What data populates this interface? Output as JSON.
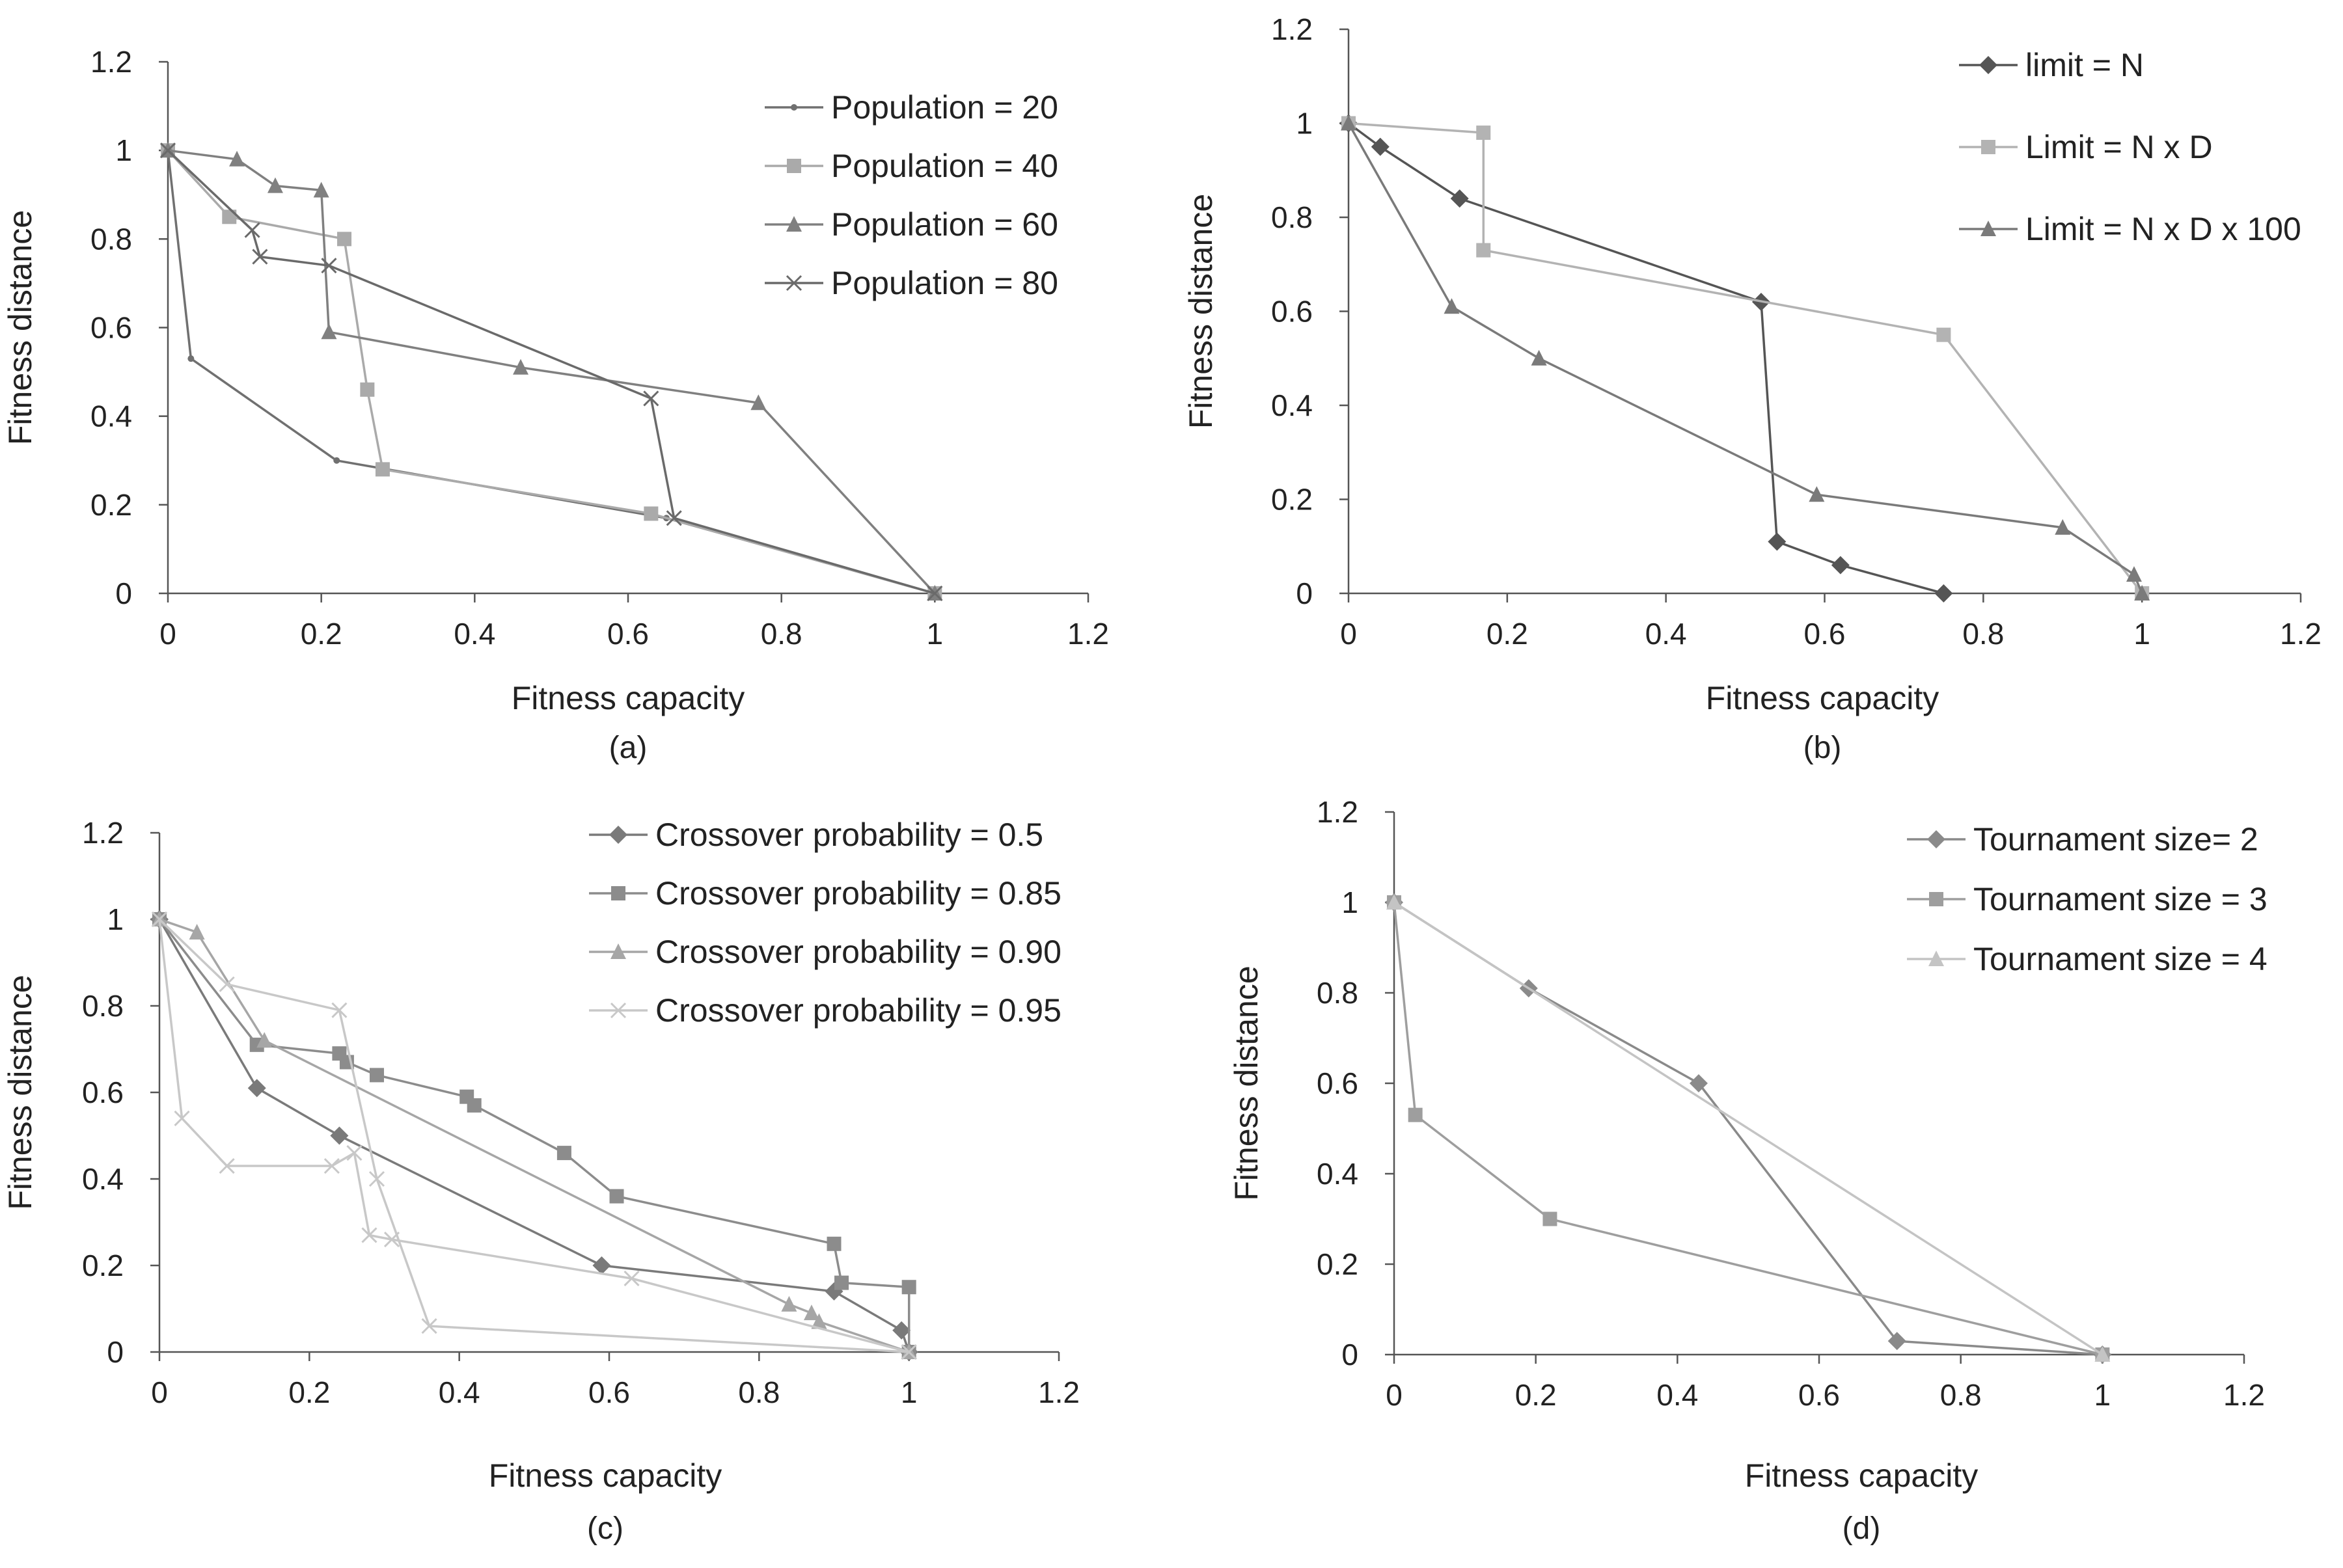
{
  "chart_data": [
    {
      "type": "line",
      "panel_label": "(a)",
      "xlabel": "Fitness capacity",
      "ylabel": "Fitness distance",
      "xlim": [
        0,
        1.2
      ],
      "ylim": [
        0,
        1.2
      ],
      "x_ticks": [
        "0",
        "0.2",
        "0.4",
        "0.6",
        "0.8",
        "1",
        "1.2"
      ],
      "y_ticks": [
        "0",
        "0.2",
        "0.4",
        "0.6",
        "0.8",
        "1",
        "1.2"
      ],
      "legend_position": "top-right",
      "series": [
        {
          "name": "Population = 20",
          "marker": "dot",
          "color": "#707070",
          "points": [
            [
              0,
              1
            ],
            [
              0.03,
              0.53
            ],
            [
              0.22,
              0.3
            ],
            [
              0.65,
              0.17
            ],
            [
              1,
              0
            ]
          ]
        },
        {
          "name": "Population = 40",
          "marker": "square",
          "color": "#aaaaaa",
          "points": [
            [
              0,
              1
            ],
            [
              0.08,
              0.85
            ],
            [
              0.23,
              0.8
            ],
            [
              0.26,
              0.46
            ],
            [
              0.28,
              0.28
            ],
            [
              0.63,
              0.18
            ],
            [
              1,
              0
            ]
          ]
        },
        {
          "name": "Population = 60",
          "marker": "triangle",
          "color": "#808080",
          "points": [
            [
              0,
              1
            ],
            [
              0.09,
              0.98
            ],
            [
              0.14,
              0.92
            ],
            [
              0.2,
              0.91
            ],
            [
              0.21,
              0.59
            ],
            [
              0.46,
              0.51
            ],
            [
              0.77,
              0.43
            ],
            [
              1,
              0
            ]
          ]
        },
        {
          "name": "Population = 80",
          "marker": "x",
          "color": "#6a6a6a",
          "points": [
            [
              0,
              1
            ],
            [
              0.11,
              0.82
            ],
            [
              0.12,
              0.76
            ],
            [
              0.21,
              0.74
            ],
            [
              0.63,
              0.44
            ],
            [
              0.66,
              0.17
            ],
            [
              1,
              0
            ]
          ]
        }
      ]
    },
    {
      "type": "line",
      "panel_label": "(b)",
      "xlabel": "Fitness capacity",
      "ylabel": "Fitness distance",
      "xlim": [
        0,
        1.2
      ],
      "ylim": [
        0,
        1.2
      ],
      "x_ticks": [
        "0",
        "0.2",
        "0.4",
        "0.6",
        "0.8",
        "1",
        "1.2"
      ],
      "y_ticks": [
        "0",
        "0.2",
        "0.4",
        "0.6",
        "0.8",
        "1",
        "1.2"
      ],
      "legend_position": "top-right",
      "series": [
        {
          "name": "limit = N",
          "marker": "diamond",
          "color": "#555555",
          "points": [
            [
              0,
              1
            ],
            [
              0.04,
              0.95
            ],
            [
              0.14,
              0.84
            ],
            [
              0.52,
              0.62
            ],
            [
              0.54,
              0.11
            ],
            [
              0.62,
              0.06
            ],
            [
              0.75,
              0
            ]
          ]
        },
        {
          "name": "Limit = N x D",
          "marker": "square",
          "color": "#b3b3b3",
          "points": [
            [
              0,
              1
            ],
            [
              0.17,
              0.98
            ],
            [
              0.17,
              0.73
            ],
            [
              0.75,
              0.55
            ],
            [
              1,
              0
            ]
          ]
        },
        {
          "name": "Limit = N x D x 100",
          "marker": "triangle",
          "color": "#7a7a7a",
          "points": [
            [
              0,
              1
            ],
            [
              0.13,
              0.61
            ],
            [
              0.24,
              0.5
            ],
            [
              0.59,
              0.21
            ],
            [
              0.9,
              0.14
            ],
            [
              0.99,
              0.04
            ],
            [
              1,
              0
            ]
          ]
        }
      ]
    },
    {
      "type": "line",
      "panel_label": "(c)",
      "xlabel": "Fitness capacity",
      "ylabel": "Fitness distance",
      "xlim": [
        0,
        1.2
      ],
      "ylim": [
        0,
        1.2
      ],
      "x_ticks": [
        "0",
        "0.2",
        "0.4",
        "0.6",
        "0.8",
        "1",
        "1.2"
      ],
      "y_ticks": [
        "0",
        "0.2",
        "0.4",
        "0.6",
        "0.8",
        "1",
        "1.2"
      ],
      "legend_position": "top-right",
      "series": [
        {
          "name": "Crossover probability = 0.5",
          "marker": "diamond",
          "color": "#7a7a7a",
          "points": [
            [
              0,
              1
            ],
            [
              0.13,
              0.61
            ],
            [
              0.24,
              0.5
            ],
            [
              0.59,
              0.2
            ],
            [
              0.9,
              0.14
            ],
            [
              0.99,
              0.05
            ],
            [
              1,
              0
            ]
          ]
        },
        {
          "name": "Crossover probability = 0.85",
          "marker": "square",
          "color": "#8c8c8c",
          "points": [
            [
              0,
              1
            ],
            [
              0.13,
              0.71
            ],
            [
              0.24,
              0.69
            ],
            [
              0.25,
              0.67
            ],
            [
              0.29,
              0.64
            ],
            [
              0.41,
              0.59
            ],
            [
              0.42,
              0.57
            ],
            [
              0.54,
              0.46
            ],
            [
              0.61,
              0.36
            ],
            [
              0.9,
              0.25
            ],
            [
              0.91,
              0.16
            ],
            [
              1,
              0.15
            ],
            [
              1,
              0
            ]
          ]
        },
        {
          "name": "Crossover probability = 0.90",
          "marker": "triangle",
          "color": "#a6a6a6",
          "points": [
            [
              0,
              1
            ],
            [
              0.05,
              0.97
            ],
            [
              0.14,
              0.72
            ],
            [
              0.84,
              0.11
            ],
            [
              0.87,
              0.09
            ],
            [
              0.88,
              0.07
            ],
            [
              1,
              0
            ]
          ]
        },
        {
          "name": "Crossover probability = 0.95",
          "marker": "x",
          "color": "#c8c8c8",
          "points": [
            [
              0,
              1
            ],
            [
              0.03,
              0.54
            ],
            [
              0.09,
              0.43
            ],
            [
              0.23,
              0.43
            ],
            [
              0.26,
              0.46
            ],
            [
              0.28,
              0.27
            ],
            [
              0.31,
              0.26
            ],
            [
              0.63,
              0.17
            ],
            [
              1,
              0
            ],
            [
              0.36,
              0.06
            ],
            [
              0.29,
              0.4
            ],
            [
              0.24,
              0.79
            ],
            [
              0.09,
              0.85
            ],
            [
              0,
              1
            ]
          ]
        }
      ]
    },
    {
      "type": "line",
      "panel_label": "(d)",
      "xlabel": "Fitness capacity",
      "ylabel": "Fitness distance",
      "xlim": [
        0,
        1.2
      ],
      "ylim": [
        0,
        1.2
      ],
      "x_ticks": [
        "0",
        "0.2",
        "0.4",
        "0.6",
        "0.8",
        "1",
        "1.2"
      ],
      "y_ticks": [
        "0",
        "0.2",
        "0.4",
        "0.6",
        "0.8",
        "1",
        "1.2"
      ],
      "legend_position": "top-right",
      "series": [
        {
          "name": "Tournament size= 2",
          "marker": "diamond",
          "color": "#8a8a8a",
          "points": [
            [
              0,
              1
            ],
            [
              0.19,
              0.81
            ],
            [
              0.43,
              0.6
            ],
            [
              0.71,
              0.03
            ],
            [
              1,
              0
            ]
          ]
        },
        {
          "name": "Tournament size = 3",
          "marker": "square",
          "color": "#9e9e9e",
          "points": [
            [
              0,
              1
            ],
            [
              0.03,
              0.53
            ],
            [
              0.22,
              0.3
            ],
            [
              1,
              0
            ]
          ]
        },
        {
          "name": "Tournament size = 4",
          "marker": "triangle",
          "color": "#c4c4c4",
          "points": [
            [
              0,
              1
            ],
            [
              1,
              0
            ]
          ]
        }
      ]
    }
  ]
}
